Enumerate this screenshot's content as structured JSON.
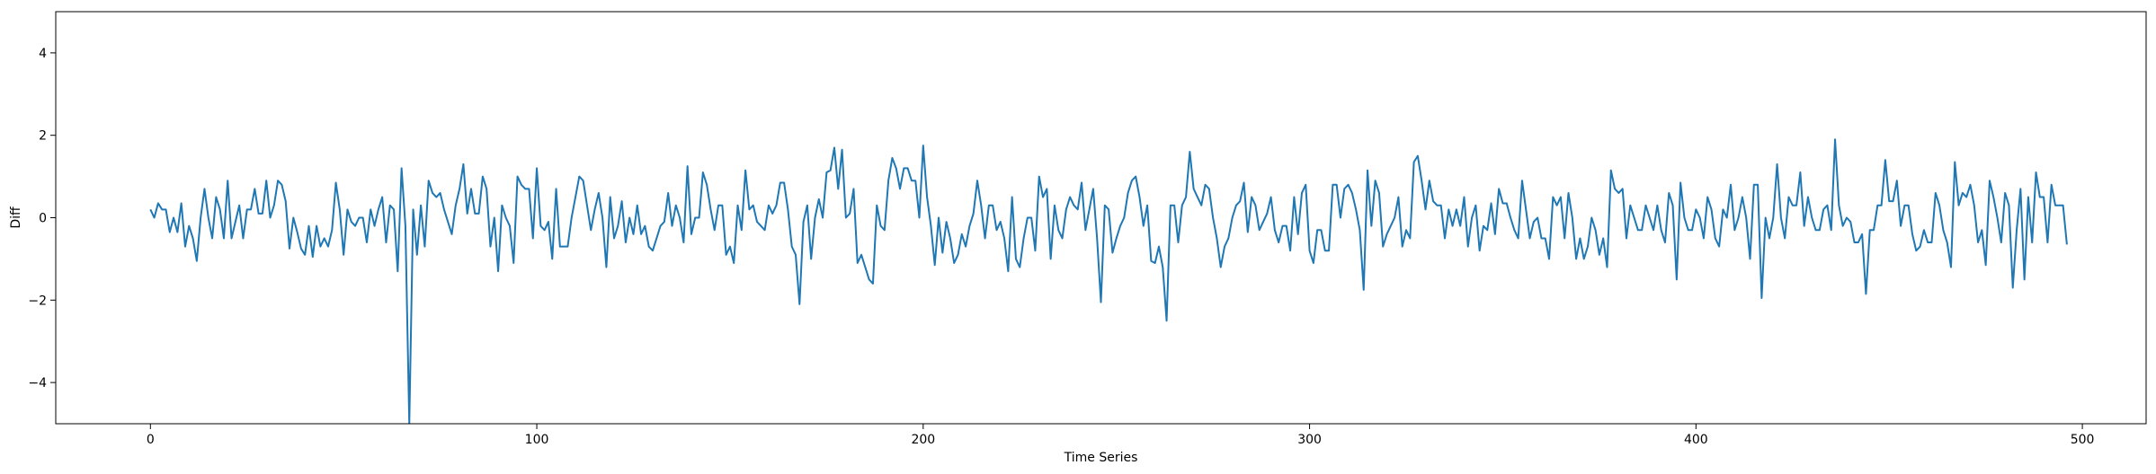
{
  "chart_data": {
    "type": "line",
    "title": "",
    "xlabel": "Time Series",
    "ylabel": "Diff",
    "xlim": [
      -24.5,
      516.5
    ],
    "ylim": [
      -5,
      5
    ],
    "xticks": [
      0,
      100,
      200,
      300,
      400,
      500
    ],
    "yticks": [
      -4,
      -2,
      0,
      2,
      4
    ],
    "xtick_labels": [
      "0",
      "100",
      "200",
      "300",
      "400",
      "500"
    ],
    "ytick_labels": [
      "−4",
      "−2",
      "0",
      "2",
      "4"
    ],
    "grid": false,
    "line_color": "#1f77b4",
    "series": [
      {
        "x_start": 0,
        "x_step": 1,
        "values": [
          0.2,
          0.0,
          0.35,
          0.2,
          0.2,
          -0.35,
          0.0,
          -0.35,
          0.35,
          -0.7,
          -0.2,
          -0.5,
          -1.05,
          0.0,
          0.7,
          0.0,
          -0.5,
          0.5,
          0.2,
          -0.5,
          0.9,
          -0.5,
          -0.1,
          0.3,
          -0.5,
          0.2,
          0.2,
          0.7,
          0.1,
          0.1,
          0.9,
          0.0,
          0.3,
          0.9,
          0.8,
          0.4,
          -0.75,
          0.0,
          -0.35,
          -0.75,
          -0.9,
          -0.2,
          -0.95,
          -0.2,
          -0.7,
          -0.5,
          -0.7,
          -0.3,
          0.85,
          0.2,
          -0.9,
          0.2,
          -0.1,
          -0.2,
          0.0,
          0.0,
          -0.6,
          0.2,
          -0.2,
          0.2,
          0.5,
          -0.6,
          0.3,
          0.2,
          -1.3,
          1.2,
          -0.2,
          -5.0,
          0.2,
          -0.9,
          0.3,
          -0.7,
          0.9,
          0.6,
          0.5,
          0.6,
          0.2,
          -0.1,
          -0.4,
          0.3,
          0.7,
          1.3,
          0.1,
          0.7,
          0.1,
          0.1,
          1.0,
          0.7,
          -0.7,
          0.0,
          -1.3,
          0.3,
          0.0,
          -0.2,
          -1.1,
          1.0,
          0.8,
          0.7,
          0.7,
          -0.5,
          1.2,
          -0.2,
          -0.3,
          -0.1,
          -1.0,
          0.7,
          -0.7,
          -0.7,
          -0.7,
          0.0,
          0.5,
          1.0,
          0.9,
          0.3,
          -0.3,
          0.2,
          0.6,
          0.0,
          -1.2,
          0.5,
          -0.5,
          -0.2,
          0.4,
          -0.6,
          0.0,
          -0.4,
          0.3,
          -0.4,
          -0.2,
          -0.7,
          -0.8,
          -0.5,
          -0.2,
          -0.1,
          0.6,
          -0.2,
          0.3,
          0.0,
          -0.6,
          1.25,
          -0.4,
          0.0,
          0.0,
          1.1,
          0.8,
          0.2,
          -0.3,
          0.3,
          0.3,
          -0.9,
          -0.7,
          -1.1,
          0.3,
          -0.3,
          1.15,
          0.2,
          0.3,
          -0.1,
          -0.2,
          -0.3,
          0.3,
          0.1,
          0.3,
          0.85,
          0.85,
          0.2,
          -0.7,
          -0.9,
          -2.1,
          -0.1,
          0.3,
          -1.0,
          0.0,
          0.45,
          0.0,
          1.1,
          1.15,
          1.7,
          0.7,
          1.65,
          0.0,
          0.1,
          0.7,
          -1.1,
          -0.9,
          -1.2,
          -1.5,
          -1.6,
          0.3,
          -0.2,
          -0.3,
          0.9,
          1.45,
          1.2,
          0.7,
          1.2,
          1.2,
          0.9,
          0.9,
          0.0,
          1.75,
          0.5,
          -0.2,
          -1.15,
          0.0,
          -0.85,
          -0.1,
          -0.5,
          -1.1,
          -0.9,
          -0.4,
          -0.7,
          -0.2,
          0.1,
          0.9,
          0.3,
          -0.5,
          0.3,
          0.3,
          -0.3,
          -0.1,
          -0.5,
          -1.3,
          0.5,
          -1.0,
          -1.2,
          -0.5,
          0.0,
          0.0,
          -0.8,
          1.0,
          0.5,
          0.7,
          -1.0,
          0.3,
          -0.3,
          -0.5,
          0.2,
          0.5,
          0.3,
          0.2,
          0.85,
          -0.3,
          0.2,
          0.7,
          -0.5,
          -2.05,
          0.3,
          0.2,
          -0.85,
          -0.5,
          -0.2,
          0.0,
          0.6,
          0.9,
          1.0,
          0.5,
          -0.2,
          0.3,
          -1.05,
          -1.1,
          -0.7,
          -1.2,
          -2.5,
          0.3,
          0.3,
          -0.6,
          0.3,
          0.5,
          1.6,
          0.7,
          0.5,
          0.3,
          0.8,
          0.7,
          0.0,
          -0.5,
          -1.2,
          -0.7,
          -0.5,
          0.0,
          0.3,
          0.4,
          0.85,
          -0.35,
          0.5,
          0.3,
          -0.3,
          -0.1,
          0.1,
          0.5,
          -0.3,
          -0.6,
          -0.2,
          -0.2,
          -0.8,
          0.5,
          -0.4,
          0.6,
          0.8,
          -0.8,
          -1.1,
          -0.3,
          -0.3,
          -0.8,
          -0.8,
          0.8,
          0.8,
          0.0,
          0.7,
          0.8,
          0.6,
          0.2,
          -0.3,
          -1.75,
          1.15,
          -0.2,
          0.9,
          0.6,
          -0.7,
          -0.4,
          -0.2,
          0.0,
          0.5,
          -0.7,
          -0.3,
          -0.5,
          1.35,
          1.5,
          0.9,
          0.2,
          0.9,
          0.4,
          0.3,
          0.3,
          -0.5,
          0.2,
          -0.2,
          0.2,
          -0.2,
          0.5,
          -0.7,
          0.0,
          0.3,
          -0.8,
          -0.2,
          -0.3,
          0.35,
          -0.4,
          0.7,
          0.35,
          0.35,
          0.0,
          -0.3,
          -0.5,
          0.9,
          0.2,
          -0.5,
          -0.1,
          0.0,
          -0.5,
          -0.5,
          -1.0,
          0.5,
          0.3,
          0.5,
          -0.5,
          0.6,
          0.0,
          -1.0,
          -0.5,
          -1.0,
          -0.7,
          0.0,
          -0.3,
          -0.9,
          -0.5,
          -1.2,
          1.15,
          0.7,
          0.6,
          0.7,
          -0.5,
          0.3,
          0.0,
          -0.3,
          -0.3,
          0.3,
          0.0,
          -0.3,
          0.3,
          -0.3,
          -0.6,
          0.6,
          0.3,
          -1.5,
          0.85,
          0.0,
          -0.3,
          -0.3,
          0.2,
          0.0,
          -0.5,
          0.5,
          0.2,
          -0.5,
          -0.7,
          0.2,
          0.0,
          0.8,
          -0.3,
          0.0,
          0.5,
          0.0,
          -1.0,
          0.8,
          0.8,
          -1.95,
          0.0,
          -0.5,
          0.0,
          1.3,
          0.0,
          -0.5,
          0.5,
          0.3,
          0.3,
          1.1,
          -0.2,
          0.5,
          0.0,
          -0.3,
          -0.3,
          0.2,
          0.3,
          -0.3,
          1.9,
          0.3,
          -0.2,
          0.0,
          -0.1,
          -0.6,
          -0.6,
          -0.4,
          -1.85,
          -0.3,
          -0.3,
          0.3,
          0.3,
          1.4,
          0.4,
          0.4,
          0.9,
          -0.2,
          0.3,
          0.3,
          -0.4,
          -0.8,
          -0.7,
          -0.3,
          -0.6,
          -0.6,
          0.6,
          0.3,
          -0.3,
          -0.6,
          -1.2,
          1.35,
          0.3,
          0.6,
          0.5,
          0.8,
          0.3,
          -0.6,
          -0.3,
          -1.15,
          0.9,
          0.5,
          0.0,
          -0.6,
          0.6,
          0.3,
          -1.7,
          -0.3,
          0.7,
          -1.5,
          0.5,
          -0.6,
          1.1,
          0.5,
          0.5,
          -0.6,
          0.8,
          0.3,
          0.3,
          0.3,
          -0.65
        ]
      }
    ]
  }
}
